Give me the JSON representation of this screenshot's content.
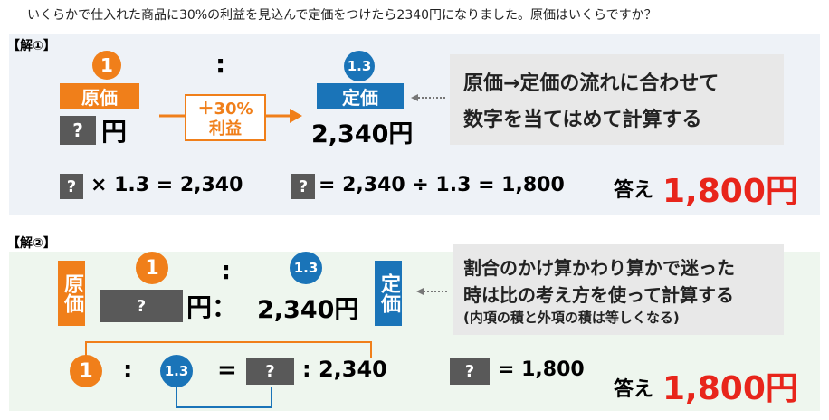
{
  "question": "いくらかで仕入れた商品に30%の利益を見込んで定価をつけたら2340円になりました。原価はいくらですか？",
  "method1": {
    "label": "【解①】",
    "cost_ratio": "1",
    "cost_label": "原価",
    "unknown": "?",
    "yen": "円",
    "colon": ":",
    "arrow_top": "＋30%",
    "arrow_bottom": "利益",
    "price_ratio": "1.3",
    "price_label": "定価",
    "price": "2,340円",
    "note": [
      "原価→定価の流れに合わせて",
      "数字を当てはめて計算する"
    ],
    "eq1_unknown": "?",
    "eq1": "× 1.3 = 2,340",
    "eq2_unknown": "?",
    "eq2": "= 2,340 ÷ 1.3 = 1,800",
    "answer_label": "答え",
    "answer": "1,800円"
  },
  "method2": {
    "label": "【解②】",
    "cost_label": "原価",
    "cost_ratio": "1",
    "colon": ":",
    "price_ratio": "1.3",
    "price_label": "定価",
    "unknown": "?",
    "yen_colon": "円：",
    "price": "2,340円",
    "note": [
      "割合のかけ算かわり算かで迷った",
      "時は比の考え方を使って計算する",
      "(内項の積と外項の積は等しくなる)"
    ],
    "prop_a": "1",
    "prop_colon1": ":",
    "prop_b": "1.3",
    "prop_eq": "=",
    "prop_unknown": "?",
    "prop_rest": ": 2,340",
    "result_unknown": "?",
    "result": "= 1,800",
    "answer_label": "答え",
    "answer": "1,800円"
  }
}
